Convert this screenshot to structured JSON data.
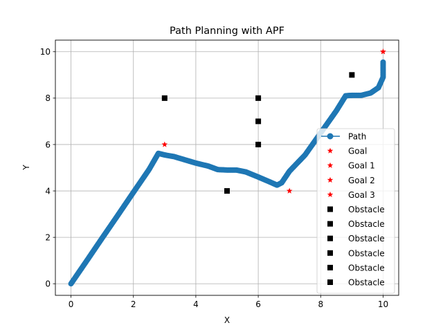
{
  "chart_data": {
    "type": "scatter",
    "title": "Path Planning with APF",
    "xlabel": "X",
    "ylabel": "Y",
    "xlim": [
      -0.5,
      10.5
    ],
    "ylim": [
      -0.5,
      10.5
    ],
    "xticks": [
      "0",
      "2",
      "4",
      "6",
      "8",
      "10"
    ],
    "yticks": [
      "0",
      "2",
      "4",
      "6",
      "8",
      "10"
    ],
    "grid": true,
    "legend_position": "lower-right",
    "path": {
      "name": "Path",
      "color": "#1f77b4",
      "points": [
        [
          0,
          0
        ],
        [
          0.5,
          0.98
        ],
        [
          1,
          1.97
        ],
        [
          1.5,
          2.95
        ],
        [
          2,
          3.94
        ],
        [
          2.5,
          4.92
        ],
        [
          2.8,
          5.62
        ],
        [
          3,
          5.55
        ],
        [
          3.3,
          5.48
        ],
        [
          3.6,
          5.36
        ],
        [
          4,
          5.2
        ],
        [
          4.4,
          5.07
        ],
        [
          4.7,
          4.92
        ],
        [
          5,
          4.9
        ],
        [
          5.3,
          4.9
        ],
        [
          5.6,
          4.82
        ],
        [
          6,
          4.6
        ],
        [
          6.4,
          4.37
        ],
        [
          6.6,
          4.25
        ],
        [
          6.75,
          4.35
        ],
        [
          7,
          4.85
        ],
        [
          7.5,
          5.55
        ],
        [
          8,
          6.5
        ],
        [
          8.5,
          7.45
        ],
        [
          8.8,
          8.1
        ],
        [
          9,
          8.12
        ],
        [
          9.3,
          8.12
        ],
        [
          9.6,
          8.22
        ],
        [
          9.85,
          8.45
        ],
        [
          10,
          8.9
        ],
        [
          10,
          9.2
        ],
        [
          10,
          9.55
        ]
      ]
    },
    "goals": {
      "color": "#ff0000",
      "items": [
        {
          "name": "Goal",
          "x": 10,
          "y": 10
        },
        {
          "name": "Goal 1",
          "x": 3,
          "y": 6
        },
        {
          "name": "Goal 2",
          "x": 7,
          "y": 4
        },
        {
          "name": "Goal 3",
          "x": 10,
          "y": 10
        }
      ]
    },
    "obstacles": {
      "color": "#000000",
      "items": [
        {
          "name": "Obstacle",
          "x": 3,
          "y": 8
        },
        {
          "name": "Obstacle",
          "x": 6,
          "y": 8
        },
        {
          "name": "Obstacle",
          "x": 6,
          "y": 7
        },
        {
          "name": "Obstacle",
          "x": 6,
          "y": 6
        },
        {
          "name": "Obstacle",
          "x": 5,
          "y": 4
        },
        {
          "name": "Obstacle",
          "x": 9,
          "y": 9
        }
      ]
    }
  }
}
